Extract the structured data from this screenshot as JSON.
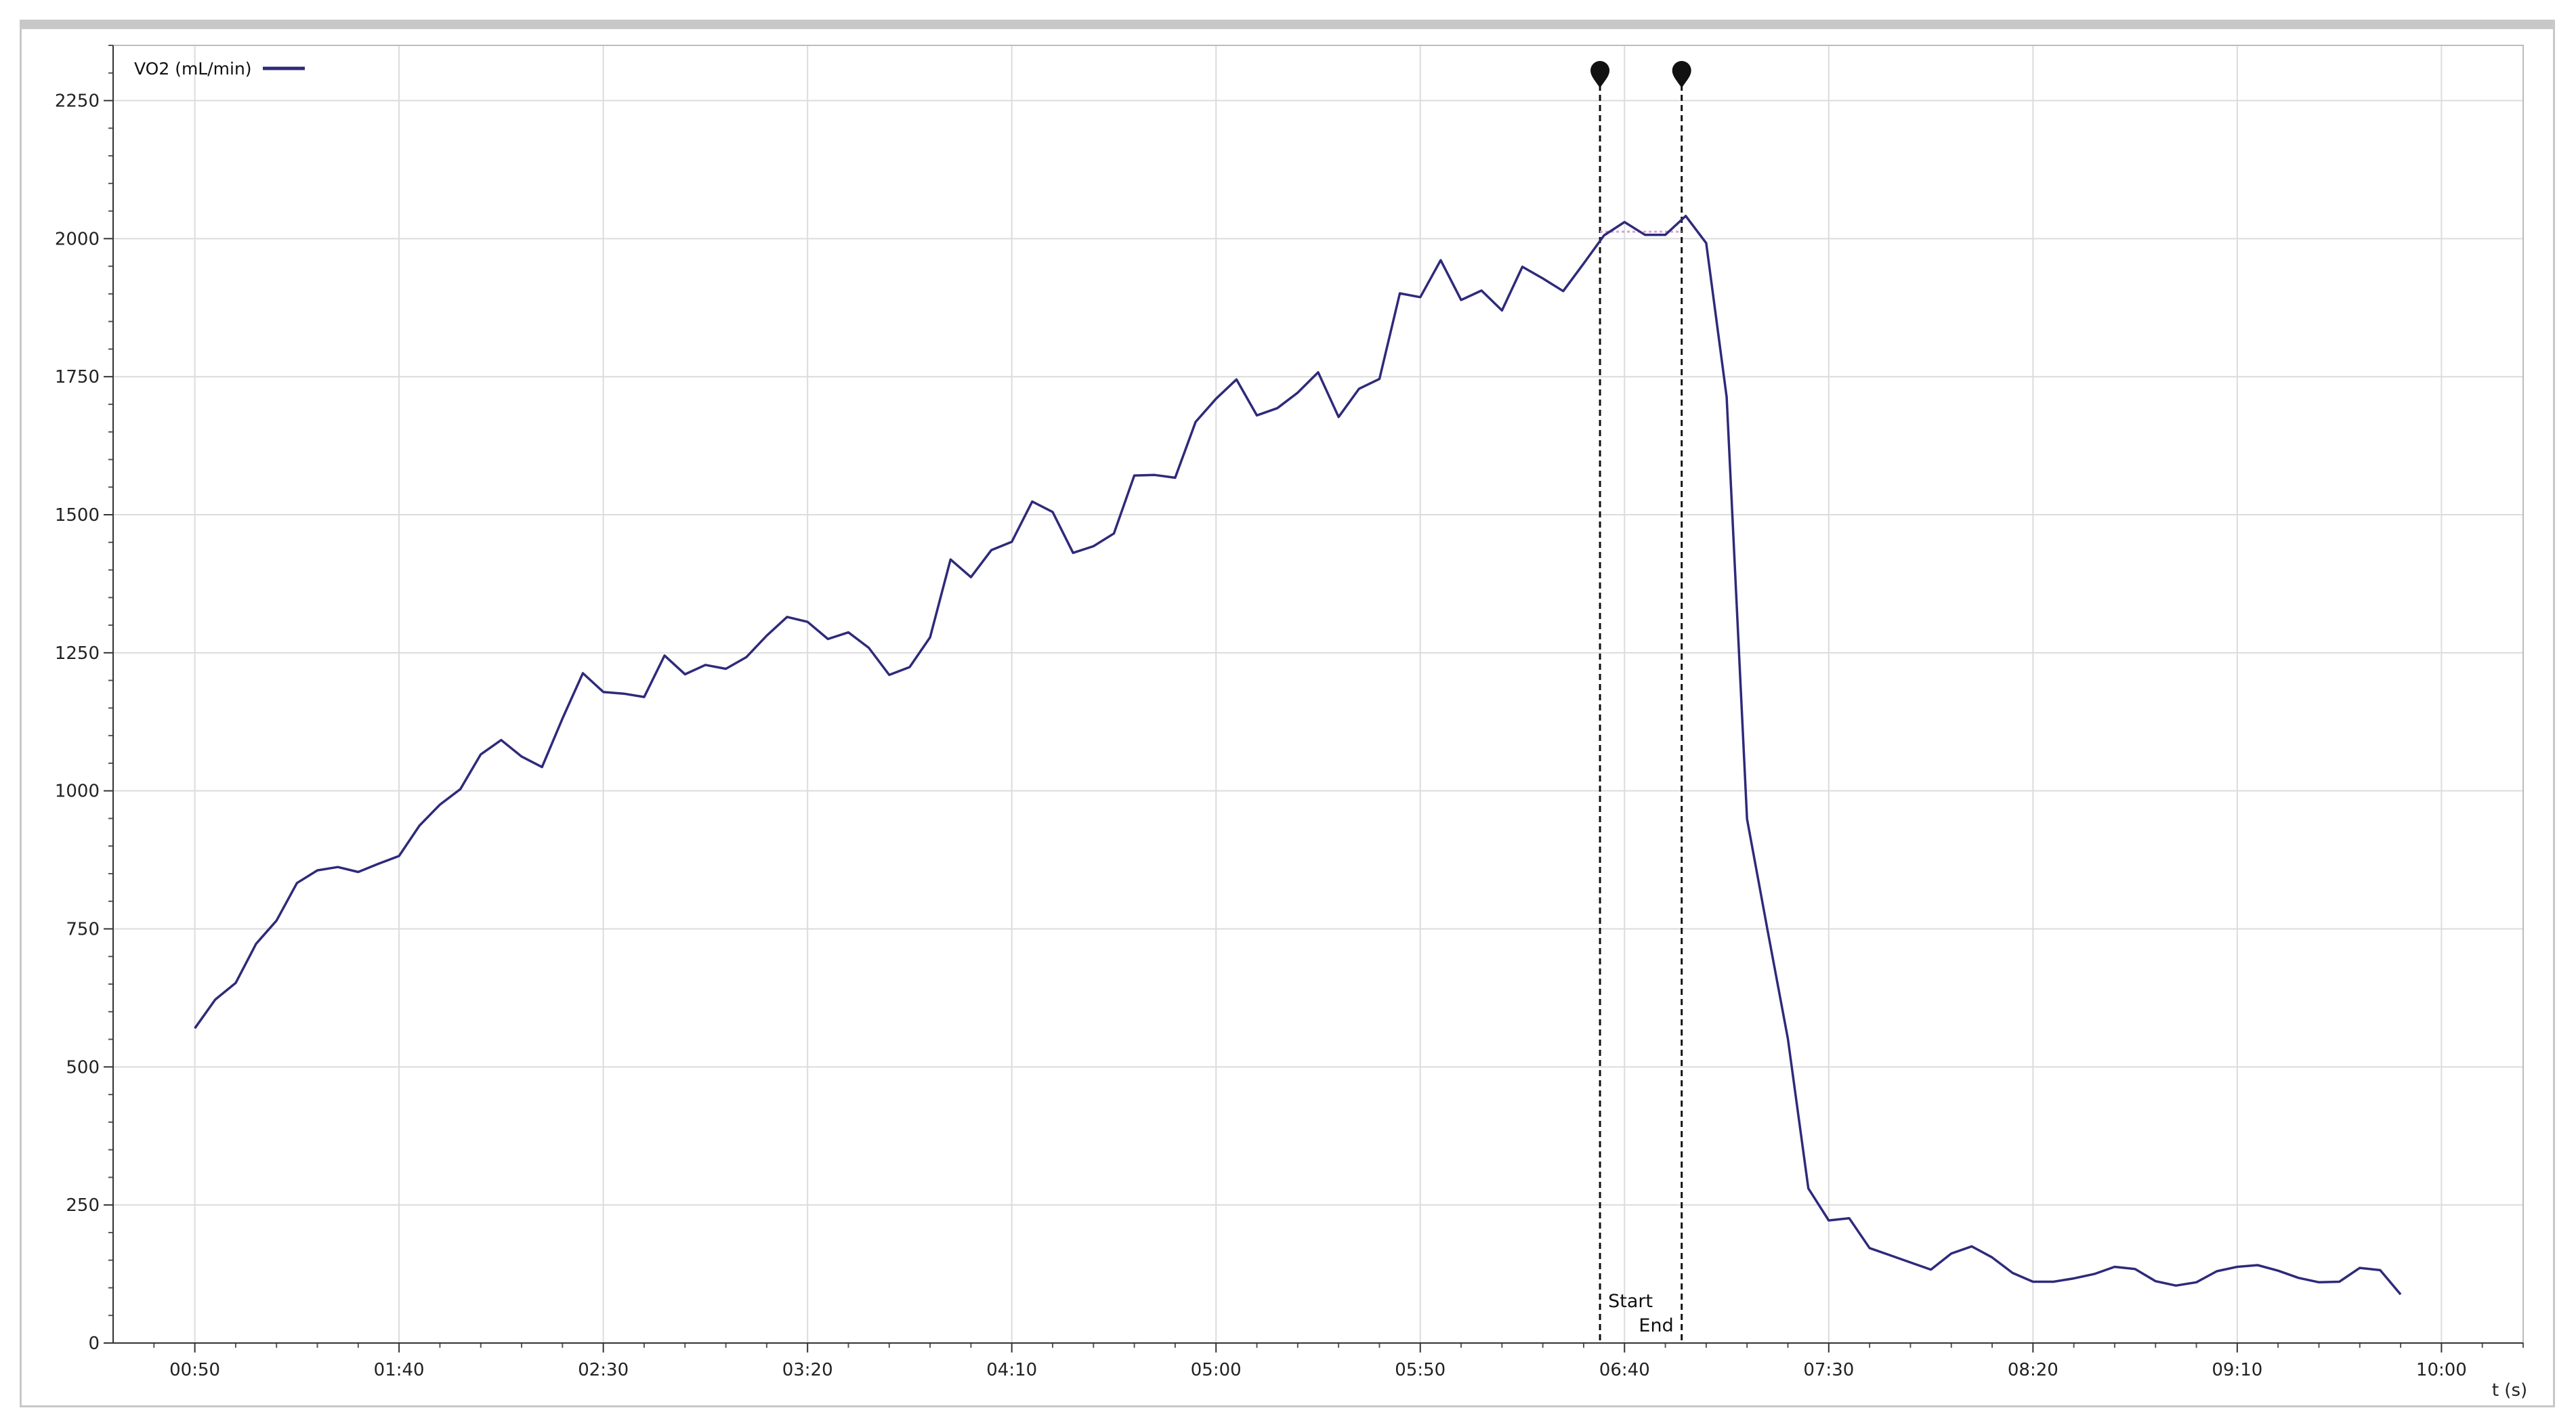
{
  "chart_data": {
    "type": "line",
    "title": "",
    "xlabel": "t (s)",
    "ylabel": "",
    "xlim": [
      30,
      620
    ],
    "ylim": [
      0,
      2350
    ],
    "x_ticks": [
      {
        "value": 50,
        "label": "00:50"
      },
      {
        "value": 100,
        "label": "01:40"
      },
      {
        "value": 150,
        "label": "02:30"
      },
      {
        "value": 200,
        "label": "03:20"
      },
      {
        "value": 250,
        "label": "04:10"
      },
      {
        "value": 300,
        "label": "05:00"
      },
      {
        "value": 350,
        "label": "05:50"
      },
      {
        "value": 400,
        "label": "06:40"
      },
      {
        "value": 450,
        "label": "07:30"
      },
      {
        "value": 500,
        "label": "08:20"
      },
      {
        "value": 550,
        "label": "09:10"
      },
      {
        "value": 600,
        "label": "10:00"
      }
    ],
    "y_ticks": [
      0,
      250,
      500,
      750,
      1000,
      1250,
      1500,
      1750,
      2000,
      2250
    ],
    "grid": true,
    "legend_position": "top-left",
    "series": [
      {
        "name": "VO2 (mL/min)",
        "color": "#2e2a7a",
        "x": [
          50,
          55,
          60,
          65,
          70,
          75,
          80,
          85,
          90,
          95,
          100,
          105,
          110,
          115,
          120,
          125,
          130,
          135,
          140,
          145,
          150,
          155,
          160,
          165,
          170,
          175,
          180,
          185,
          190,
          195,
          200,
          205,
          210,
          215,
          220,
          225,
          230,
          235,
          240,
          245,
          250,
          255,
          260,
          265,
          270,
          275,
          280,
          285,
          290,
          295,
          300,
          305,
          310,
          315,
          320,
          325,
          330,
          335,
          340,
          345,
          350,
          355,
          360,
          365,
          370,
          375,
          380,
          385,
          390,
          395,
          400,
          405,
          410,
          415,
          420,
          425,
          430,
          435,
          440,
          445,
          450,
          455,
          460,
          465,
          470,
          475,
          480,
          485,
          490,
          495,
          500,
          505,
          510,
          515,
          520,
          525,
          530,
          535,
          540,
          545,
          550,
          555,
          560,
          565,
          570,
          575,
          580,
          585,
          590
        ],
        "y": [
          570,
          622,
          652,
          723,
          765,
          833,
          856,
          862,
          853,
          868,
          882,
          937,
          975,
          1003,
          1066,
          1092,
          1062,
          1043,
          1131,
          1213,
          1179,
          1176,
          1170,
          1245,
          1211,
          1228,
          1221,
          1242,
          1281,
          1315,
          1306,
          1275,
          1287,
          1259,
          1210,
          1224,
          1278,
          1419,
          1387,
          1436,
          1451,
          1524,
          1505,
          1431,
          1443,
          1466,
          1571,
          1572,
          1567,
          1668,
          1710,
          1745,
          1680,
          1693,
          1721,
          1758,
          1677,
          1728,
          1746,
          1901,
          1894,
          1961,
          1889,
          1906,
          1870,
          1949,
          1928,
          1905,
          1955,
          2006,
          2030,
          2007,
          2007,
          2041,
          1992,
          1713,
          949,
          748,
          551,
          280,
          222,
          226,
          172,
          159,
          146,
          133,
          162,
          175,
          155,
          127,
          111,
          111,
          117,
          125,
          138,
          134,
          112,
          104,
          110,
          130,
          138,
          141,
          131,
          118,
          110,
          111,
          136,
          132,
          88
        ]
      }
    ],
    "markers": [
      {
        "x": 394,
        "label": "Start"
      },
      {
        "x": 414,
        "label": "End"
      }
    ],
    "annotation_color": "#d9a0d9"
  }
}
